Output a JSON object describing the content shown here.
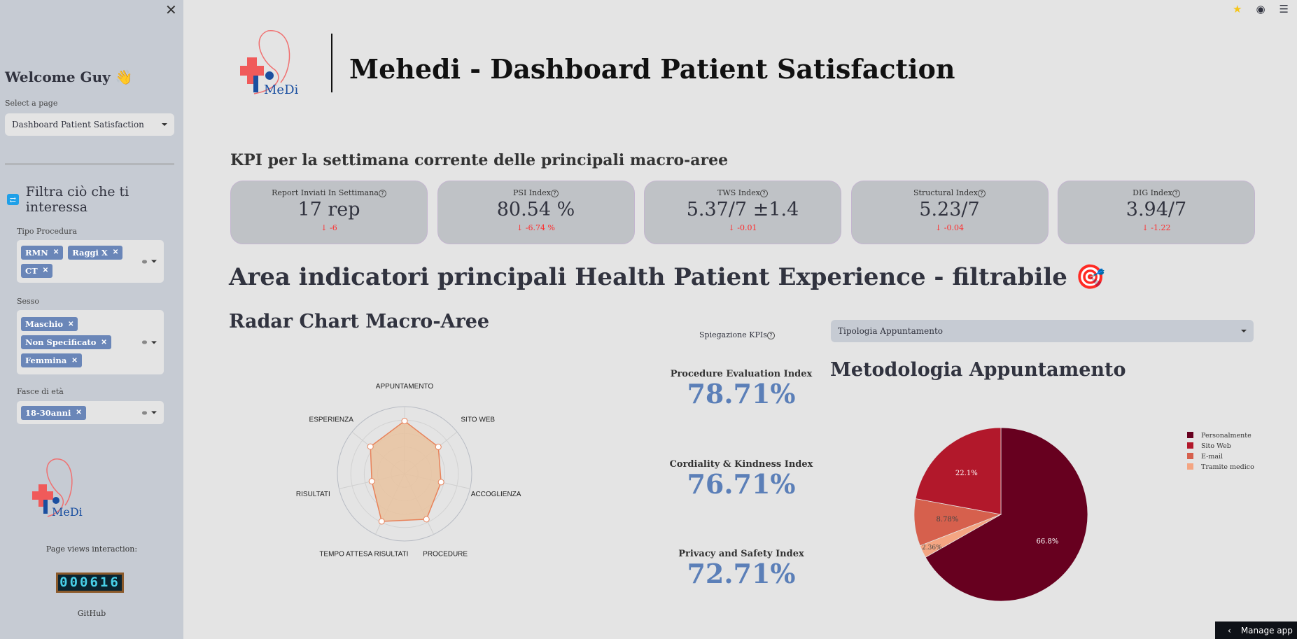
{
  "sidebar": {
    "close_icon": "close-icon",
    "welcome": "Welcome Guy 👋",
    "select_label": "Select a page",
    "select_value": "Dashboard Patient Satisfaction",
    "filter_heading": "Filtra ciò che ti interessa",
    "filters": [
      {
        "label": "Tipo Procedura",
        "tags": [
          "RMN",
          "Raggi X",
          "CT"
        ]
      },
      {
        "label": "Sesso",
        "tags": [
          "Maschio",
          "Non Specificato",
          "Femmina"
        ]
      },
      {
        "label": "Fasce di età",
        "tags": [
          "18-30anni"
        ]
      }
    ],
    "logo_text": "MeDi",
    "page_views_label": "Page views interaction:",
    "page_views": "000616",
    "github": "GitHub"
  },
  "topbar": {
    "icons": [
      "star-icon",
      "github-icon",
      "menu-icon"
    ]
  },
  "header": {
    "logo_text": "MeDi",
    "title": "Mehedi - Dashboard Patient Satisfaction"
  },
  "kpi": {
    "heading": "KPI per la settimana corrente delle principali macro-aree",
    "cards": [
      {
        "label": "Report Inviati In Settimana",
        "value": "17 rep",
        "delta": "-6"
      },
      {
        "label": "PSI Index",
        "value": "80.54 %",
        "delta": "-6.74 %"
      },
      {
        "label": "TWS Index",
        "value": "5.37/7 ±1.4",
        "delta": "-0.01"
      },
      {
        "label": "Structural Index",
        "value": "5.23/7",
        "delta": "-0.04"
      },
      {
        "label": "DIG Index",
        "value": "3.94/7",
        "delta": "-1.22"
      }
    ],
    "delta_color": "#ff2b2b"
  },
  "main": {
    "heading": "Area indicatori principali Health Patient Experience - filtrabile 🎯",
    "radar_heading": "Radar Chart Macro-Aree",
    "spiegazione": "Spiegazione KPIs",
    "indices": [
      {
        "label": "Procedure Evaluation Index",
        "value": "78.71%"
      },
      {
        "label": "Cordiality & Kindness Index",
        "value": "76.71%"
      },
      {
        "label": "Privacy and Safety Index",
        "value": "72.71%"
      }
    ],
    "tipologia_select": "Tipologia Appuntamento",
    "metodologia_heading": "Metodologia Appuntamento",
    "manage_app": "Manage app"
  },
  "chart_data": [
    {
      "type": "radar",
      "categories": [
        "APPUNTAMENTO",
        "SITO WEB",
        "ACCOGLIENZA",
        "PROCEDURE",
        "TEMPO ATTESA RISULTATI",
        "RISULTATI",
        "ESPERIENZA"
      ],
      "values": [
        5.5,
        4.5,
        3.9,
        5.25,
        5.5,
        3.5,
        4.55
      ],
      "range": [
        0,
        7
      ],
      "color": "#e8825a",
      "fill": "#e9c3a0"
    },
    {
      "type": "pie",
      "labels": [
        "Personalmente",
        "Sito Web",
        "E-mail",
        "Tramite medico"
      ],
      "values": [
        66.8,
        22.1,
        8.78,
        2.36
      ],
      "text": [
        "66.8%",
        "22.1%",
        "8.78%",
        "2.36%"
      ],
      "colors": [
        "#67001f",
        "#b2182b",
        "#d6604d",
        "#f4a582"
      ],
      "legend": "top-right",
      "direction": "counterclockwise"
    }
  ]
}
